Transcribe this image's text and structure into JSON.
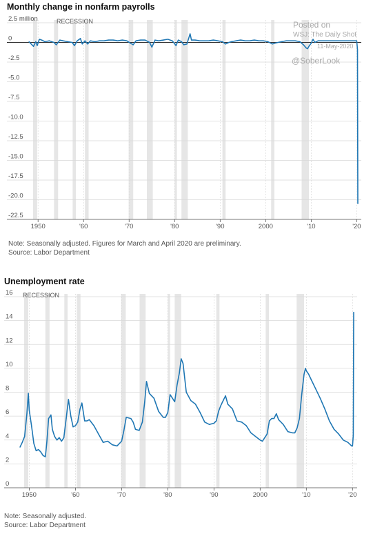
{
  "chart_data": [
    {
      "type": "line",
      "title": "Monthly change in nonfarm payrolls",
      "ylabel": "",
      "xlabel": "",
      "unit_label": "million",
      "recession_label": "RECESSION",
      "ylim": [
        -22.5,
        2.5
      ],
      "xlim": [
        1948,
        2021
      ],
      "yticks": [
        2.5,
        0,
        -2.5,
        -5.0,
        -7.5,
        -10.0,
        -12.5,
        -15.0,
        -17.5,
        -20.0,
        -22.5
      ],
      "ytick_labels": [
        "2.5 million",
        "0",
        "-2.5",
        "-5.0",
        "-7.5",
        "-10.0",
        "-12.5",
        "-15.0",
        "-17.5",
        "-20.0",
        "-22.5"
      ],
      "xticks": [
        1950,
        1960,
        1970,
        1980,
        1990,
        2000,
        2010,
        2020
      ],
      "xtick_labels": [
        "1950",
        "'60",
        "'70",
        "'80",
        "'90",
        "2000",
        "'10",
        "'20"
      ],
      "grid": true,
      "series": [
        {
          "color": "#1f77b4",
          "x": [
            1948.0,
            1948.5,
            1949.0,
            1949.5,
            1949.8,
            1950.3,
            1950.8,
            1951.5,
            1952.5,
            1953.5,
            1954.0,
            1954.8,
            1955.5,
            1956.5,
            1957.5,
            1958.0,
            1958.6,
            1959.3,
            1959.7,
            1960.3,
            1960.9,
            1961.5,
            1962.5,
            1963.5,
            1964.5,
            1965.5,
            1966.5,
            1967.5,
            1968.5,
            1969.5,
            1970.3,
            1970.9,
            1971.5,
            1972.5,
            1973.5,
            1974.5,
            1975.0,
            1975.7,
            1976.5,
            1977.5,
            1978.5,
            1979.5,
            1980.3,
            1980.8,
            1981.5,
            1982.0,
            1982.7,
            1983.4,
            1983.7,
            1984.5,
            1985.5,
            1986.5,
            1987.5,
            1988.5,
            1989.5,
            1990.5,
            1991.2,
            1991.9,
            1992.5,
            1993.5,
            1994.5,
            1995.5,
            1996.5,
            1997.5,
            1998.5,
            1999.5,
            2000.5,
            2001.5,
            2002.0,
            2002.7,
            2003.5,
            2004.5,
            2005.5,
            2006.5,
            2007.5,
            2008.3,
            2008.9,
            2009.2,
            2009.6,
            2010.0,
            2010.4,
            2010.8,
            2011.5,
            2012.5,
            2013.5,
            2014.5,
            2015.5,
            2016.5,
            2017.5,
            2018.5,
            2019.5,
            2020.0,
            2020.17,
            2020.25
          ],
          "values": [
            0.1,
            -0.2,
            -0.5,
            0.1,
            -0.4,
            0.4,
            0.3,
            0.1,
            0.2,
            0.0,
            -0.3,
            0.3,
            0.2,
            0.1,
            0.0,
            -0.4,
            0.2,
            0.5,
            -0.2,
            0.2,
            -0.2,
            0.2,
            0.1,
            0.2,
            0.2,
            0.3,
            0.3,
            0.2,
            0.3,
            0.2,
            -0.1,
            -0.3,
            0.2,
            0.3,
            0.3,
            0.0,
            -0.6,
            0.3,
            0.2,
            0.3,
            0.4,
            0.2,
            -0.4,
            0.3,
            0.1,
            -0.3,
            -0.2,
            1.1,
            0.3,
            0.3,
            0.2,
            0.2,
            0.2,
            0.3,
            0.2,
            0.1,
            -0.2,
            0.0,
            0.1,
            0.2,
            0.3,
            0.2,
            0.2,
            0.3,
            0.2,
            0.2,
            0.1,
            -0.2,
            -0.1,
            0.0,
            0.1,
            0.2,
            0.2,
            0.2,
            0.1,
            -0.3,
            -0.7,
            -0.8,
            -0.4,
            -0.1,
            0.4,
            0.0,
            0.2,
            0.2,
            0.2,
            0.2,
            0.2,
            0.2,
            0.2,
            0.2,
            0.2,
            0.2,
            -0.9,
            -20.5
          ]
        }
      ],
      "recessions": [
        [
          1948.9,
          1949.8
        ],
        [
          1953.5,
          1954.4
        ],
        [
          1957.6,
          1958.3
        ],
        [
          1960.3,
          1961.1
        ],
        [
          1969.9,
          1970.9
        ],
        [
          1973.9,
          1975.2
        ],
        [
          1980.0,
          1980.5
        ],
        [
          1981.5,
          1982.9
        ],
        [
          1990.5,
          1991.2
        ],
        [
          2001.2,
          2001.9
        ],
        [
          2007.9,
          2009.5
        ]
      ],
      "note": "Note: Seasonally adjusted. Figures for March and April 2020 are preliminary.",
      "source": "Source: Labor Department"
    },
    {
      "type": "line",
      "title": "Unemployment rate",
      "ylabel": "",
      "xlabel": "",
      "recession_label": "RECESSION",
      "ylim": [
        0,
        16
      ],
      "xlim": [
        1948,
        2021
      ],
      "yticks": [
        0,
        2,
        4,
        6,
        8,
        10,
        12,
        14,
        16
      ],
      "ytick_labels": [
        "0",
        "2",
        "4",
        "6",
        "8",
        "10",
        "12",
        "14",
        "16"
      ],
      "xticks": [
        1950,
        1960,
        1970,
        1980,
        1990,
        2000,
        2010,
        2020
      ],
      "xtick_labels": [
        "1950",
        "'60",
        "'70",
        "'80",
        "'90",
        "2000",
        "'10",
        "'20"
      ],
      "grid": true,
      "series": [
        {
          "color": "#1f77b4",
          "x": [
            1948.0,
            1948.5,
            1949.0,
            1949.5,
            1949.8,
            1950.0,
            1950.5,
            1951.0,
            1951.5,
            1952.0,
            1952.5,
            1953.0,
            1953.5,
            1953.8,
            1954.2,
            1954.7,
            1955.0,
            1955.5,
            1956.0,
            1956.5,
            1957.0,
            1957.5,
            1958.0,
            1958.5,
            1959.0,
            1959.5,
            1960.0,
            1960.5,
            1961.0,
            1961.4,
            1962.0,
            1962.5,
            1963.0,
            1964.0,
            1965.0,
            1966.0,
            1967.0,
            1968.0,
            1969.0,
            1970.0,
            1970.5,
            1971.0,
            1972.0,
            1972.5,
            1973.0,
            1973.8,
            1974.5,
            1975.0,
            1975.4,
            1976.0,
            1976.5,
            1977.0,
            1978.0,
            1979.0,
            1979.5,
            1980.0,
            1980.5,
            1981.0,
            1981.5,
            1982.0,
            1982.5,
            1982.9,
            1983.3,
            1984.0,
            1985.0,
            1986.0,
            1987.0,
            1988.0,
            1989.0,
            1990.0,
            1990.5,
            1991.0,
            1991.5,
            1992.0,
            1992.5,
            1993.0,
            1994.0,
            1995.0,
            1996.0,
            1997.0,
            1998.0,
            1999.0,
            2000.0,
            2000.5,
            2001.0,
            2001.5,
            2002.0,
            2002.5,
            2003.0,
            2003.5,
            2004.0,
            2005.0,
            2006.0,
            2007.0,
            2007.5,
            2008.0,
            2008.5,
            2009.0,
            2009.5,
            2009.8,
            2010.0,
            2010.5,
            2011.0,
            2012.0,
            2013.0,
            2014.0,
            2015.0,
            2016.0,
            2017.0,
            2018.0,
            2019.0,
            2019.8,
            2020.0,
            2020.17,
            2020.25
          ],
          "values": [
            3.4,
            3.8,
            4.3,
            6.2,
            7.9,
            6.5,
            5.2,
            3.7,
            3.1,
            3.2,
            3.0,
            2.7,
            2.6,
            3.8,
            5.8,
            6.1,
            4.9,
            4.3,
            4.0,
            4.2,
            3.9,
            4.2,
            5.8,
            7.4,
            6.0,
            5.1,
            5.2,
            5.5,
            6.6,
            7.1,
            5.6,
            5.6,
            5.7,
            5.2,
            4.5,
            3.8,
            3.9,
            3.6,
            3.5,
            3.9,
            4.8,
            5.9,
            5.8,
            5.5,
            4.9,
            4.8,
            5.5,
            7.2,
            8.9,
            7.9,
            7.7,
            7.5,
            6.4,
            5.9,
            5.9,
            6.3,
            7.8,
            7.5,
            7.2,
            8.6,
            9.6,
            10.8,
            10.4,
            8.0,
            7.3,
            7.0,
            6.3,
            5.5,
            5.3,
            5.4,
            5.6,
            6.4,
            6.9,
            7.3,
            7.7,
            7.0,
            6.6,
            5.6,
            5.5,
            5.2,
            4.6,
            4.3,
            4.0,
            3.9,
            4.2,
            4.5,
            5.6,
            5.8,
            5.8,
            6.2,
            5.7,
            5.3,
            4.7,
            4.6,
            4.6,
            5.0,
            5.8,
            7.8,
            9.5,
            10.0,
            9.8,
            9.5,
            9.1,
            8.3,
            7.5,
            6.6,
            5.6,
            4.9,
            4.5,
            4.0,
            3.8,
            3.5,
            3.5,
            4.4,
            14.7
          ]
        }
      ],
      "recessions": [
        [
          1948.9,
          1949.8
        ],
        [
          1953.5,
          1954.4
        ],
        [
          1957.6,
          1958.3
        ],
        [
          1960.3,
          1961.1
        ],
        [
          1969.9,
          1970.9
        ],
        [
          1973.9,
          1975.2
        ],
        [
          1980.0,
          1980.5
        ],
        [
          1981.5,
          1982.9
        ],
        [
          1990.5,
          1991.2
        ],
        [
          2001.2,
          2001.9
        ],
        [
          2007.9,
          2009.5
        ]
      ],
      "note": "Note: Seasonally adjusted.",
      "source": "Source: Labor Department"
    }
  ],
  "watermark": {
    "posted": "Posted on",
    "outlet": "WSJ: The Daily Shot",
    "date": "11-May-2020",
    "handle": "@SoberLook"
  }
}
